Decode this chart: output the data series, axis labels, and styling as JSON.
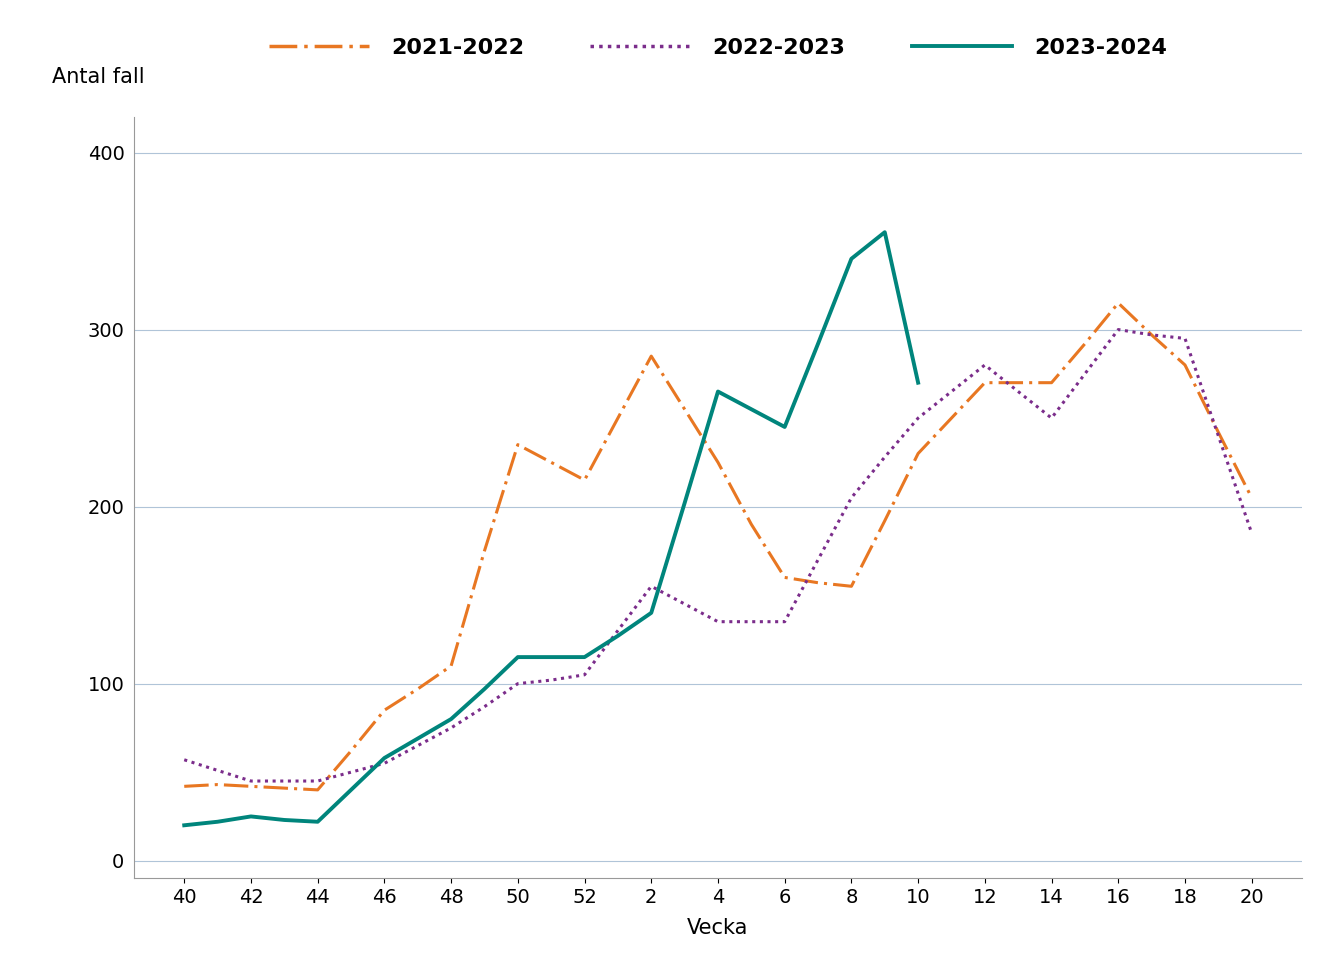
{
  "ylabel": "Antal fall",
  "xlabel": "Vecka",
  "x_tick_labels": [
    "40",
    "42",
    "44",
    "46",
    "48",
    "50",
    "52",
    "2",
    "4",
    "6",
    "8",
    "10",
    "12",
    "14",
    "16",
    "18",
    "20"
  ],
  "x_positions": [
    40,
    42,
    44,
    46,
    48,
    50,
    52,
    54,
    56,
    58,
    60,
    62,
    64,
    66,
    68,
    70,
    72
  ],
  "series_2021": {
    "label": "2021-2022",
    "color": "#E87722",
    "x": [
      40,
      41,
      42,
      43,
      44,
      45,
      46,
      47,
      48,
      49,
      50,
      51,
      52,
      53,
      54,
      55,
      56,
      57,
      58,
      59,
      60,
      61,
      62,
      63,
      64,
      65,
      66,
      67,
      68,
      69,
      70,
      71,
      72
    ],
    "y": [
      42,
      43,
      42,
      41,
      40,
      62,
      85,
      97,
      110,
      175,
      235,
      225,
      215,
      250,
      285,
      255,
      225,
      190,
      160,
      157,
      155,
      192,
      230,
      250,
      270,
      270,
      270,
      292,
      315,
      297,
      280,
      242,
      205
    ]
  },
  "series_2022": {
    "label": "2022-2023",
    "color": "#7B2D8B",
    "x": [
      40,
      41,
      42,
      43,
      44,
      45,
      46,
      47,
      48,
      49,
      50,
      51,
      52,
      53,
      54,
      55,
      56,
      57,
      58,
      59,
      60,
      61,
      62,
      63,
      64,
      65,
      66,
      67,
      68,
      69,
      70,
      71,
      72
    ],
    "y": [
      57,
      51,
      45,
      45,
      45,
      50,
      55,
      65,
      75,
      87,
      100,
      102,
      105,
      130,
      155,
      145,
      135,
      135,
      135,
      170,
      205,
      228,
      250,
      265,
      280,
      265,
      250,
      275,
      300,
      297,
      295,
      240,
      185
    ]
  },
  "series_2023": {
    "label": "2023-2024",
    "color": "#00857C",
    "x": [
      40,
      41,
      42,
      43,
      44,
      45,
      46,
      47,
      48,
      49,
      50,
      51,
      52,
      53,
      54,
      55,
      56,
      57,
      58,
      59,
      60,
      61,
      62
    ],
    "y": [
      20,
      22,
      25,
      23,
      22,
      40,
      58,
      69,
      80,
      97,
      115,
      115,
      115,
      127,
      140,
      202,
      265,
      255,
      245,
      292,
      340,
      355,
      270
    ]
  },
  "ylim": [
    -10,
    420
  ],
  "yticks": [
    0,
    100,
    200,
    300,
    400
  ],
  "xlim": [
    38.5,
    73.5
  ],
  "background_color": "#ffffff",
  "grid_color": "#b0c4d8",
  "legend_fontsize": 16,
  "tick_fontsize": 14,
  "label_fontsize": 15
}
